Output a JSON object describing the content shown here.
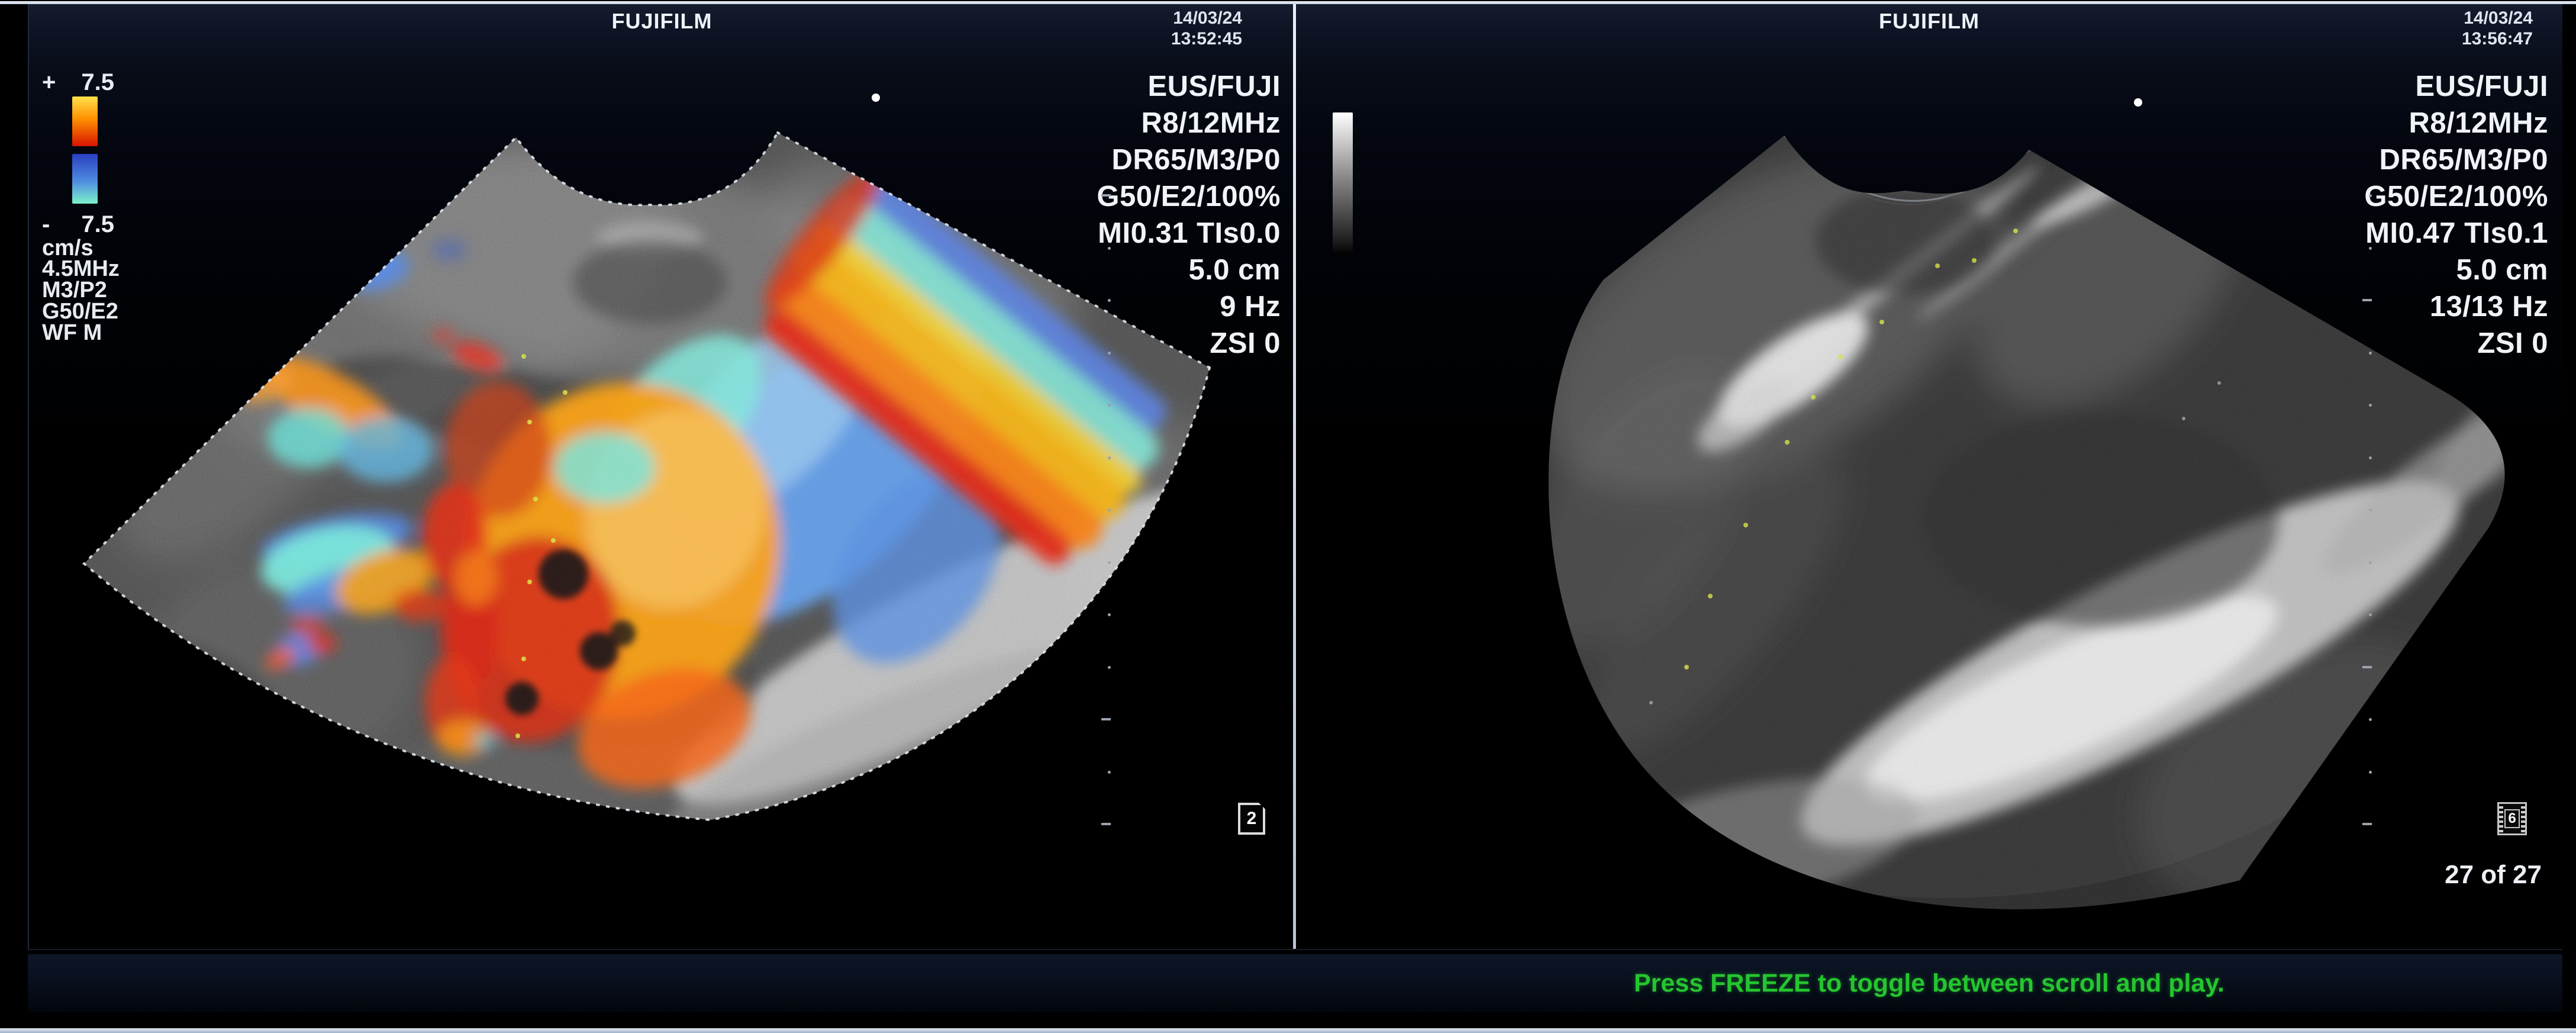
{
  "window": {
    "brand": "FUJIFILM"
  },
  "left_panel": {
    "date": "14/03/24",
    "time": "13:52:45",
    "info_lines": [
      "EUS/FUJI",
      "R8/12MHz",
      "DR65/M3/P0",
      "G50/E2/100%",
      "MI0.31  TIs0.0",
      "5.0 cm",
      "9 Hz",
      "ZSI 0"
    ],
    "color_scale": {
      "positive_sign": "+",
      "positive_value": "7.5",
      "negative_sign": "-",
      "negative_value": "7.5",
      "unit": "cm/s",
      "warm_gradient": [
        "#ffe24a",
        "#ff9000",
        "#d81400"
      ],
      "cool_gradient": [
        "#2a3ec0",
        "#4e8ce0",
        "#7df2cc"
      ]
    },
    "doppler_settings": [
      "4.5MHz",
      "M3/P2",
      "G50/E2",
      "WF M"
    ],
    "page_indicator": "2"
  },
  "right_panel": {
    "date": "14/03/24",
    "time": "13:56:47",
    "info_lines": [
      "EUS/FUJI",
      "R8/12MHz",
      "DR65/M3/P0",
      "G50/E2/100%",
      "MI0.47  TIs0.1",
      "5.0 cm",
      "13/13 Hz",
      "ZSI 0"
    ],
    "cine_frame": "6",
    "frame_counter": "27 of 27"
  },
  "status_bar": {
    "message": "Press FREEZE to toggle between scroll and play.",
    "message_color": "#25c52f"
  }
}
